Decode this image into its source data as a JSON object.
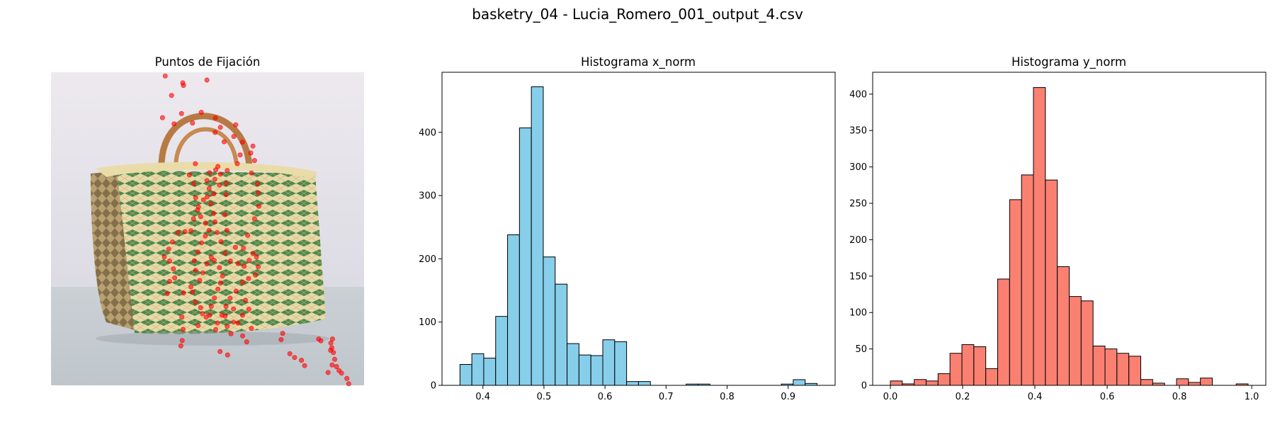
{
  "figure": {
    "suptitle": "basketry_04 - Lucia_Romero_001_output_4.csv"
  },
  "chart_data": [
    {
      "type": "scatter",
      "title": "Puntos de Fijación",
      "background": "photo of a woven basketry handbag with green and cream stripes and a wicker handle",
      "axes_visible": false,
      "xlim": [
        0,
        1
      ],
      "ylim": [
        1,
        0
      ],
      "marker_color": "#ff0000",
      "points": [
        [
          0.365,
          0.012
        ],
        [
          0.421,
          0.034
        ],
        [
          0.423,
          0.042
        ],
        [
          0.498,
          0.025
        ],
        [
          0.385,
          0.074
        ],
        [
          0.393,
          0.165
        ],
        [
          0.356,
          0.145
        ],
        [
          0.417,
          0.132
        ],
        [
          0.452,
          0.162
        ],
        [
          0.48,
          0.128
        ],
        [
          0.525,
          0.146
        ],
        [
          0.59,
          0.168
        ],
        [
          0.541,
          0.176
        ],
        [
          0.524,
          0.192
        ],
        [
          0.553,
          0.222
        ],
        [
          0.584,
          0.205
        ],
        [
          0.611,
          0.223
        ],
        [
          0.638,
          0.258
        ],
        [
          0.645,
          0.236
        ],
        [
          0.65,
          0.282
        ],
        [
          0.604,
          0.264
        ],
        [
          0.595,
          0.292
        ],
        [
          0.563,
          0.314
        ],
        [
          0.64,
          0.322
        ],
        [
          0.66,
          0.356
        ],
        [
          0.662,
          0.385
        ],
        [
          0.664,
          0.428
        ],
        [
          0.65,
          0.468
        ],
        [
          0.628,
          0.521
        ],
        [
          0.615,
          0.562
        ],
        [
          0.589,
          0.559
        ],
        [
          0.562,
          0.505
        ],
        [
          0.555,
          0.455
        ],
        [
          0.559,
          0.391
        ],
        [
          0.56,
          0.355
        ],
        [
          0.538,
          0.36
        ],
        [
          0.52,
          0.388
        ],
        [
          0.505,
          0.372
        ],
        [
          0.498,
          0.346
        ],
        [
          0.506,
          0.321
        ],
        [
          0.523,
          0.342
        ],
        [
          0.541,
          0.325
        ],
        [
          0.533,
          0.301
        ],
        [
          0.526,
          0.312
        ],
        [
          0.461,
          0.292
        ],
        [
          0.442,
          0.328
        ],
        [
          0.456,
          0.356
        ],
        [
          0.462,
          0.401
        ],
        [
          0.468,
          0.44
        ],
        [
          0.455,
          0.468
        ],
        [
          0.447,
          0.506
        ],
        [
          0.428,
          0.509
        ],
        [
          0.405,
          0.512
        ],
        [
          0.388,
          0.542
        ],
        [
          0.376,
          0.565
        ],
        [
          0.362,
          0.59
        ],
        [
          0.379,
          0.603
        ],
        [
          0.391,
          0.628
        ],
        [
          0.395,
          0.657
        ],
        [
          0.379,
          0.668
        ],
        [
          0.371,
          0.707
        ],
        [
          0.423,
          0.705
        ],
        [
          0.447,
          0.685
        ],
        [
          0.452,
          0.702
        ],
        [
          0.461,
          0.735
        ],
        [
          0.478,
          0.752
        ],
        [
          0.484,
          0.771
        ],
        [
          0.496,
          0.782
        ],
        [
          0.507,
          0.776
        ],
        [
          0.512,
          0.748
        ],
        [
          0.522,
          0.721
        ],
        [
          0.533,
          0.693
        ],
        [
          0.541,
          0.673
        ],
        [
          0.548,
          0.651
        ],
        [
          0.538,
          0.624
        ],
        [
          0.521,
          0.601
        ],
        [
          0.512,
          0.591
        ],
        [
          0.498,
          0.612
        ],
        [
          0.485,
          0.641
        ],
        [
          0.475,
          0.665
        ],
        [
          0.462,
          0.633
        ],
        [
          0.458,
          0.602
        ],
        [
          0.469,
          0.574
        ],
        [
          0.481,
          0.545
        ],
        [
          0.493,
          0.523
        ],
        [
          0.505,
          0.505
        ],
        [
          0.493,
          0.482
        ],
        [
          0.478,
          0.461
        ],
        [
          0.471,
          0.43
        ],
        [
          0.487,
          0.408
        ],
        [
          0.499,
          0.398
        ],
        [
          0.511,
          0.42
        ],
        [
          0.519,
          0.451
        ],
        [
          0.524,
          0.478
        ],
        [
          0.531,
          0.512
        ],
        [
          0.543,
          0.541
        ],
        [
          0.556,
          0.578
        ],
        [
          0.573,
          0.603
        ],
        [
          0.598,
          0.611
        ],
        [
          0.617,
          0.62
        ],
        [
          0.633,
          0.601
        ],
        [
          0.645,
          0.579
        ],
        [
          0.656,
          0.59
        ],
        [
          0.662,
          0.622
        ],
        [
          0.653,
          0.648
        ],
        [
          0.631,
          0.659
        ],
        [
          0.612,
          0.671
        ],
        [
          0.591,
          0.699
        ],
        [
          0.572,
          0.722
        ],
        [
          0.559,
          0.748
        ],
        [
          0.546,
          0.776
        ],
        [
          0.532,
          0.801
        ],
        [
          0.526,
          0.822
        ],
        [
          0.563,
          0.812
        ],
        [
          0.575,
          0.835
        ],
        [
          0.598,
          0.801
        ],
        [
          0.612,
          0.776
        ],
        [
          0.583,
          0.756
        ],
        [
          0.621,
          0.728
        ],
        [
          0.632,
          0.757
        ],
        [
          0.612,
          0.842
        ],
        [
          0.625,
          0.861
        ],
        [
          0.64,
          0.818
        ],
        [
          0.556,
          0.779
        ],
        [
          0.583,
          0.798
        ],
        [
          0.47,
          0.809
        ],
        [
          0.418,
          0.782
        ],
        [
          0.422,
          0.821
        ],
        [
          0.419,
          0.857
        ],
        [
          0.415,
          0.874
        ],
        [
          0.54,
          0.892
        ],
        [
          0.564,
          0.903
        ],
        [
          0.74,
          0.834
        ],
        [
          0.735,
          0.854
        ],
        [
          0.763,
          0.899
        ],
        [
          0.778,
          0.911
        ],
        [
          0.8,
          0.92
        ],
        [
          0.81,
          0.937
        ],
        [
          0.855,
          0.852
        ],
        [
          0.862,
          0.858
        ],
        [
          0.894,
          0.865
        ],
        [
          0.893,
          0.888
        ],
        [
          0.902,
          0.895
        ],
        [
          0.906,
          0.917
        ],
        [
          0.898,
          0.935
        ],
        [
          0.912,
          0.94
        ],
        [
          0.928,
          0.961
        ],
        [
          0.945,
          0.978
        ],
        [
          0.951,
          0.995
        ],
        [
          0.899,
          0.852
        ],
        [
          0.897,
          0.88
        ],
        [
          0.92,
          0.953
        ],
        [
          0.885,
          0.959
        ]
      ]
    },
    {
      "type": "bar",
      "title": "Histograma x_norm",
      "bar_color": "#87ceeb",
      "edge_color": "#000000",
      "bins": [
        0.3624,
        0.3819,
        0.4014,
        0.4209,
        0.4404,
        0.4599,
        0.4794,
        0.4989,
        0.5184,
        0.5379,
        0.5574,
        0.5769,
        0.5964,
        0.6159,
        0.6354,
        0.6549,
        0.6744,
        0.6939,
        0.7134,
        0.7329,
        0.7524,
        0.7719,
        0.7914,
        0.8109,
        0.8304,
        0.8499,
        0.8694,
        0.8889,
        0.9084,
        0.9279,
        0.9474
      ],
      "values": [
        33,
        50,
        43,
        109,
        238,
        407,
        472,
        203,
        160,
        66,
        48,
        47,
        72,
        69,
        6,
        6,
        0,
        0,
        0,
        2,
        2,
        0,
        0,
        0,
        0,
        0,
        0,
        2,
        9,
        3,
        4
      ],
      "xlim": [
        0.333,
        0.977
      ],
      "ylim": [
        0,
        495
      ],
      "xticks": [
        0.4,
        0.5,
        0.6,
        0.7,
        0.8,
        0.9
      ],
      "xtick_labels": [
        "0.4",
        "0.5",
        "0.6",
        "0.7",
        "0.8",
        "0.9"
      ],
      "yticks": [
        0,
        100,
        200,
        300,
        400
      ],
      "ytick_labels": [
        "0",
        "100",
        "200",
        "300",
        "400"
      ],
      "grid": false
    },
    {
      "type": "bar",
      "title": "Histograma y_norm",
      "bar_color": "#fa8072",
      "edge_color": "#000000",
      "bins": [
        0.0,
        0.033,
        0.066,
        0.099,
        0.132,
        0.165,
        0.198,
        0.231,
        0.264,
        0.297,
        0.33,
        0.363,
        0.396,
        0.429,
        0.462,
        0.495,
        0.528,
        0.561,
        0.594,
        0.627,
        0.66,
        0.693,
        0.726,
        0.759,
        0.792,
        0.825,
        0.858,
        0.891,
        0.924,
        0.957,
        0.99
      ],
      "values": [
        6,
        2,
        8,
        6,
        16,
        44,
        56,
        53,
        23,
        146,
        255,
        289,
        409,
        282,
        163,
        122,
        116,
        54,
        50,
        44,
        40,
        8,
        3,
        0,
        9,
        4,
        10,
        0,
        0,
        2,
        3
      ],
      "xlim": [
        -0.049,
        1.039
      ],
      "ylim": [
        0,
        430
      ],
      "xticks": [
        0.0,
        0.2,
        0.4,
        0.6,
        0.8,
        1.0
      ],
      "xtick_labels": [
        "0.0",
        "0.2",
        "0.4",
        "0.6",
        "0.8",
        "1.0"
      ],
      "yticks": [
        0,
        50,
        100,
        150,
        200,
        250,
        300,
        350,
        400
      ],
      "ytick_labels": [
        "0",
        "50",
        "100",
        "150",
        "200",
        "250",
        "300",
        "350",
        "400"
      ],
      "grid": false
    }
  ]
}
